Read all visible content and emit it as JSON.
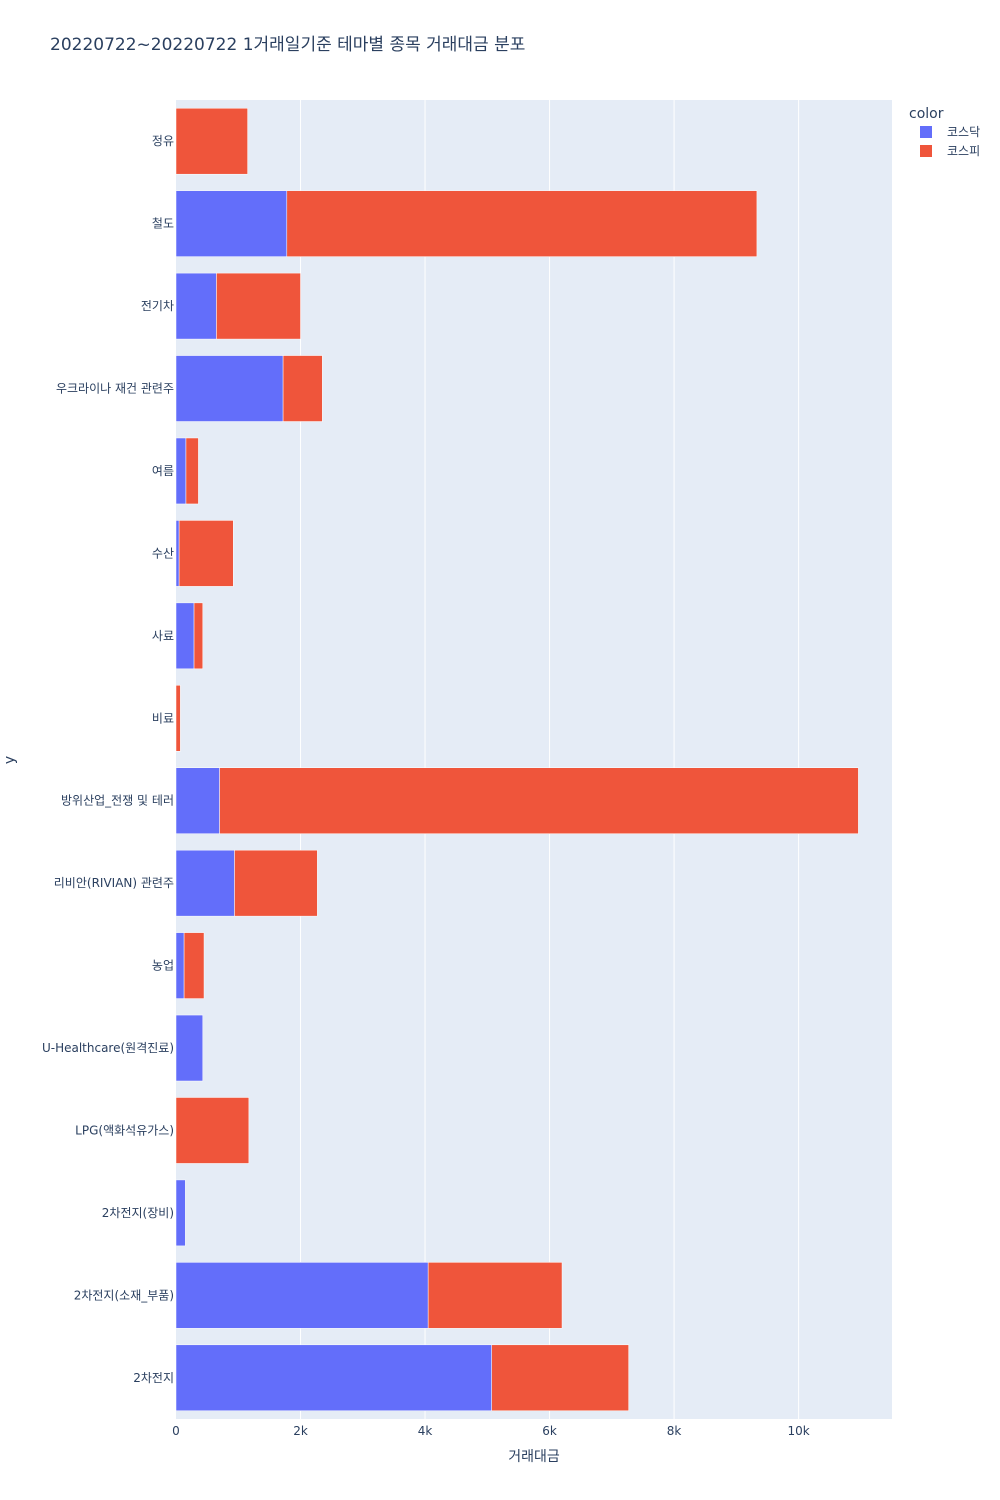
{
  "chart_data": {
    "type": "bar",
    "orientation": "horizontal",
    "barmode": "stack",
    "title": "20220722~20220722 1거래일기준 테마별 종목 거래대금 분포",
    "xlabel": "거래대금",
    "ylabel": "y",
    "xlim": [
      0,
      11500
    ],
    "x_ticks": [
      0,
      2000,
      4000,
      6000,
      8000,
      10000
    ],
    "x_tick_labels": [
      "0",
      "2k",
      "4k",
      "6k",
      "8k",
      "10k"
    ],
    "grid": true,
    "legend_title": "color",
    "legend_position": "top-right",
    "categories": [
      "정유",
      "철도",
      "전기차",
      "우크라이나 재건 관련주",
      "여름",
      "수산",
      "사료",
      "비료",
      "방위산업_전쟁 및 테러",
      "리비안(RIVIAN) 관련주",
      "농업",
      "U-Healthcare(원격진료)",
      "LPG(액화석유가스)",
      "2차전지(장비)",
      "2차전지(소재_부품)",
      "2차전지"
    ],
    "series": [
      {
        "name": "코스닥",
        "color": "#636efa",
        "values": [
          0,
          1780,
          650,
          1720,
          160,
          50,
          290,
          0,
          700,
          940,
          130,
          430,
          0,
          150,
          4050,
          5070
        ]
      },
      {
        "name": "코스피",
        "color": "#ef553b",
        "values": [
          1150,
          7550,
          1350,
          630,
          200,
          870,
          140,
          70,
          10260,
          1330,
          320,
          0,
          1170,
          0,
          2150,
          2200
        ]
      }
    ]
  }
}
